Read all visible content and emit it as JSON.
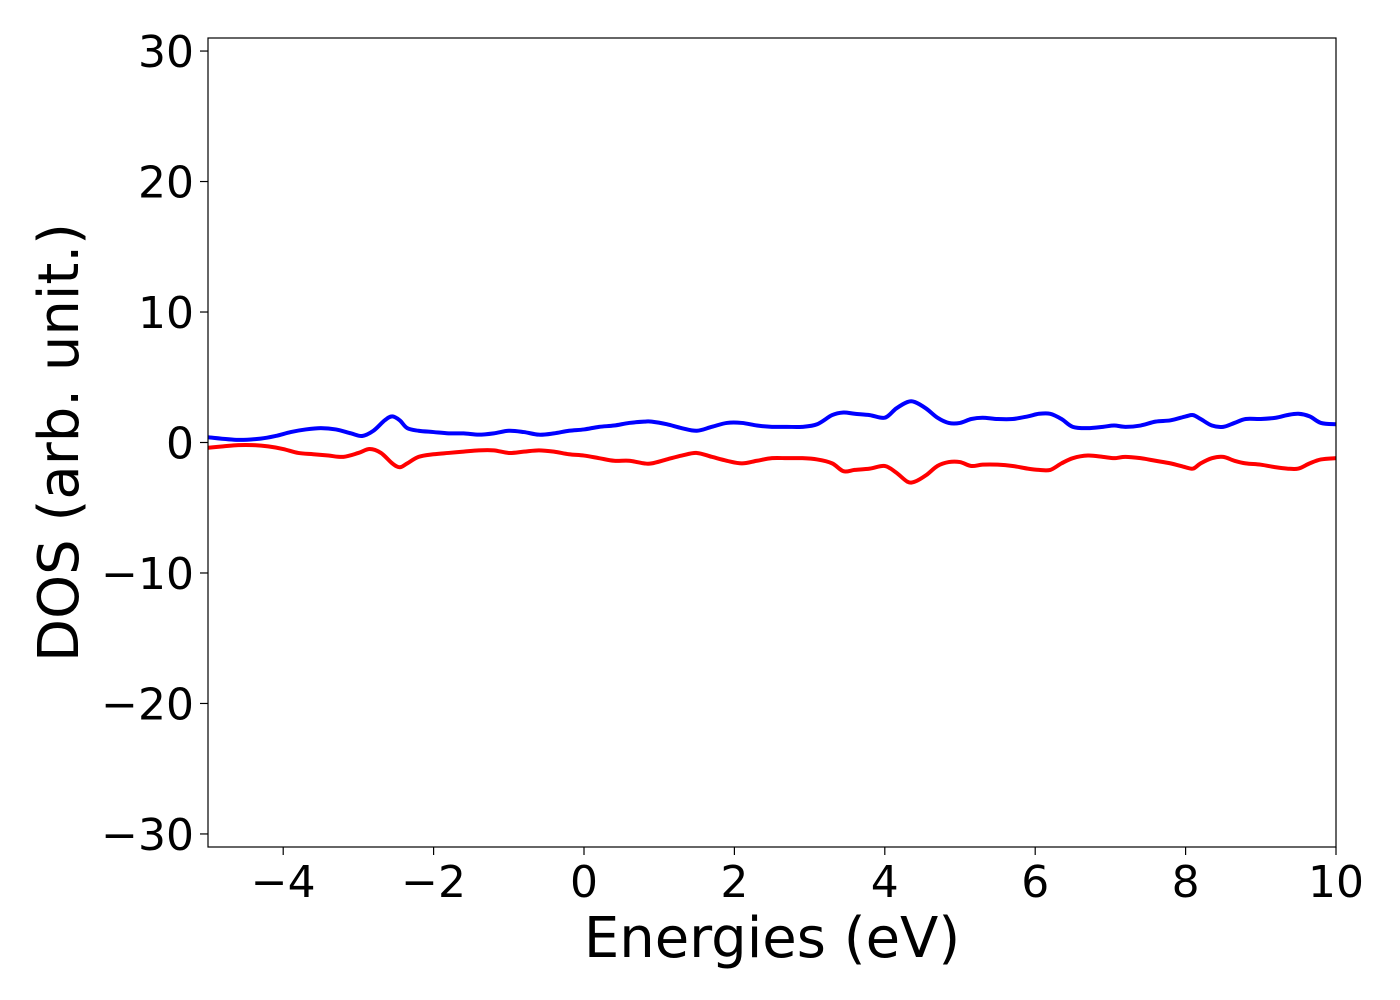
{
  "chart_data": {
    "type": "line",
    "title": "",
    "xlabel": "Energies (eV)",
    "ylabel": "DOS (arb. unit.)",
    "xlim": [
      -5,
      10
    ],
    "ylim": [
      -31,
      31
    ],
    "xticks": [
      -4,
      -2,
      0,
      2,
      4,
      6,
      8,
      10
    ],
    "xtick_labels": [
      "−4",
      "−2",
      "0",
      "2",
      "4",
      "6",
      "8",
      "10"
    ],
    "yticks": [
      30,
      20,
      10,
      0,
      -10,
      -20,
      -30
    ],
    "ytick_labels": [
      "30",
      "20",
      "10",
      "0",
      "−10",
      "−20",
      "−30"
    ],
    "grid": false,
    "legend": "none",
    "series": [
      {
        "color": "#0000ff",
        "x": [
          -5.0,
          -4.6,
          -4.3,
          -4.1,
          -3.9,
          -3.7,
          -3.5,
          -3.3,
          -3.1,
          -2.95,
          -2.8,
          -2.65,
          -2.55,
          -2.45,
          -2.35,
          -2.2,
          -2.0,
          -1.8,
          -1.6,
          -1.4,
          -1.2,
          -1.0,
          -0.8,
          -0.6,
          -0.4,
          -0.2,
          0.0,
          0.2,
          0.4,
          0.6,
          0.8,
          0.9,
          1.1,
          1.3,
          1.5,
          1.7,
          1.9,
          2.1,
          2.3,
          2.5,
          2.7,
          2.9,
          3.1,
          3.3,
          3.45,
          3.6,
          3.8,
          4.0,
          4.15,
          4.3,
          4.4,
          4.55,
          4.7,
          4.85,
          5.0,
          5.15,
          5.3,
          5.5,
          5.7,
          5.9,
          6.05,
          6.2,
          6.35,
          6.5,
          6.7,
          6.9,
          7.05,
          7.2,
          7.4,
          7.6,
          7.8,
          8.0,
          8.1,
          8.2,
          8.35,
          8.5,
          8.65,
          8.8,
          9.0,
          9.2,
          9.35,
          9.5,
          9.65,
          9.8,
          10.0
        ],
        "values": [
          0.4,
          0.2,
          0.3,
          0.5,
          0.8,
          1.0,
          1.1,
          1.0,
          0.7,
          0.5,
          0.9,
          1.7,
          2.0,
          1.7,
          1.1,
          0.9,
          0.8,
          0.7,
          0.7,
          0.6,
          0.7,
          0.9,
          0.8,
          0.6,
          0.7,
          0.9,
          1.0,
          1.2,
          1.3,
          1.5,
          1.6,
          1.6,
          1.4,
          1.1,
          0.9,
          1.2,
          1.5,
          1.5,
          1.3,
          1.2,
          1.2,
          1.2,
          1.4,
          2.1,
          2.3,
          2.2,
          2.1,
          1.9,
          2.6,
          3.1,
          3.1,
          2.6,
          1.9,
          1.5,
          1.5,
          1.8,
          1.9,
          1.8,
          1.8,
          2.0,
          2.2,
          2.2,
          1.8,
          1.2,
          1.1,
          1.2,
          1.3,
          1.2,
          1.3,
          1.6,
          1.7,
          2.0,
          2.1,
          1.8,
          1.3,
          1.2,
          1.5,
          1.8,
          1.8,
          1.9,
          2.1,
          2.2,
          2.0,
          1.5,
          1.4
        ]
      },
      {
        "color": "#ff0000",
        "x": [
          -5.0,
          -4.8,
          -4.6,
          -4.4,
          -4.2,
          -4.0,
          -3.8,
          -3.6,
          -3.4,
          -3.2,
          -3.0,
          -2.85,
          -2.7,
          -2.55,
          -2.45,
          -2.35,
          -2.2,
          -2.0,
          -1.8,
          -1.6,
          -1.4,
          -1.2,
          -1.0,
          -0.8,
          -0.6,
          -0.4,
          -0.2,
          0.0,
          0.2,
          0.4,
          0.6,
          0.8,
          0.9,
          1.1,
          1.3,
          1.5,
          1.7,
          1.9,
          2.1,
          2.3,
          2.5,
          2.7,
          2.9,
          3.1,
          3.3,
          3.45,
          3.6,
          3.8,
          4.0,
          4.15,
          4.3,
          4.4,
          4.55,
          4.7,
          4.85,
          5.0,
          5.15,
          5.3,
          5.5,
          5.7,
          5.9,
          6.05,
          6.2,
          6.35,
          6.5,
          6.7,
          6.9,
          7.05,
          7.2,
          7.4,
          7.6,
          7.8,
          8.0,
          8.1,
          8.2,
          8.35,
          8.5,
          8.65,
          8.8,
          9.0,
          9.2,
          9.35,
          9.5,
          9.65,
          9.8,
          10.0
        ],
        "values": [
          -0.4,
          -0.3,
          -0.2,
          -0.2,
          -0.3,
          -0.5,
          -0.8,
          -0.9,
          -1.0,
          -1.1,
          -0.8,
          -0.5,
          -0.8,
          -1.6,
          -1.9,
          -1.6,
          -1.1,
          -0.9,
          -0.8,
          -0.7,
          -0.6,
          -0.6,
          -0.8,
          -0.7,
          -0.6,
          -0.7,
          -0.9,
          -1.0,
          -1.2,
          -1.4,
          -1.4,
          -1.6,
          -1.6,
          -1.3,
          -1.0,
          -0.8,
          -1.1,
          -1.4,
          -1.6,
          -1.4,
          -1.2,
          -1.2,
          -1.2,
          -1.3,
          -1.6,
          -2.2,
          -2.1,
          -2.0,
          -1.8,
          -2.3,
          -3.0,
          -3.0,
          -2.5,
          -1.8,
          -1.5,
          -1.5,
          -1.8,
          -1.7,
          -1.7,
          -1.8,
          -2.0,
          -2.1,
          -2.1,
          -1.6,
          -1.2,
          -1.0,
          -1.1,
          -1.2,
          -1.1,
          -1.2,
          -1.4,
          -1.6,
          -1.9,
          -2.0,
          -1.6,
          -1.2,
          -1.1,
          -1.4,
          -1.6,
          -1.7,
          -1.9,
          -2.0,
          -2.0,
          -1.6,
          -1.3,
          -1.2
        ]
      }
    ]
  }
}
